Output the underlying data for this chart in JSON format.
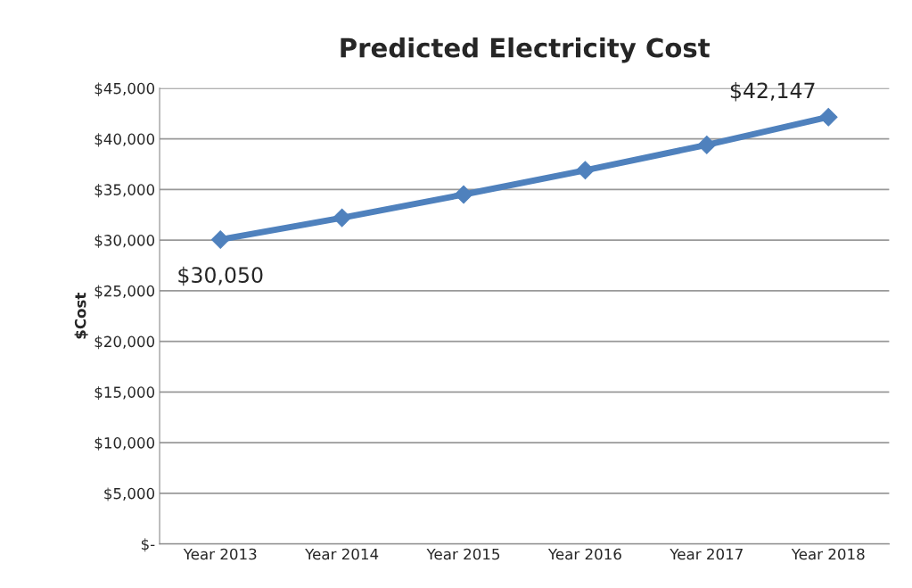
{
  "chart_data": {
    "type": "line",
    "title": "Predicted Electricity Cost",
    "ylabel": "$Cost",
    "categories": [
      "Year 2013",
      "Year 2014",
      "Year 2015",
      "Year 2016",
      "Year 2017",
      "Year 2018"
    ],
    "series": [
      {
        "color": "#4f81bd",
        "values": [
          30050,
          32200,
          34500,
          36900,
          39400,
          42147
        ]
      }
    ],
    "value_labels": [
      "$30,050",
      null,
      null,
      null,
      null,
      "$42,147"
    ],
    "ylim": [
      0,
      45000
    ],
    "yticks": [
      {
        "value": 0,
        "label": "$-"
      },
      {
        "value": 5000,
        "label": "$5,000"
      },
      {
        "value": 10000,
        "label": "$10,000"
      },
      {
        "value": 15000,
        "label": "$15,000"
      },
      {
        "value": 20000,
        "label": "$20,000"
      },
      {
        "value": 25000,
        "label": "$25,000"
      },
      {
        "value": 30000,
        "label": "$30,000"
      },
      {
        "value": 35000,
        "label": "$35,000"
      },
      {
        "value": 40000,
        "label": "$40,000"
      },
      {
        "value": 45000,
        "label": "$45,000"
      }
    ],
    "grid": "y",
    "marker": "diamond",
    "line_style": "solid",
    "legend": false
  }
}
